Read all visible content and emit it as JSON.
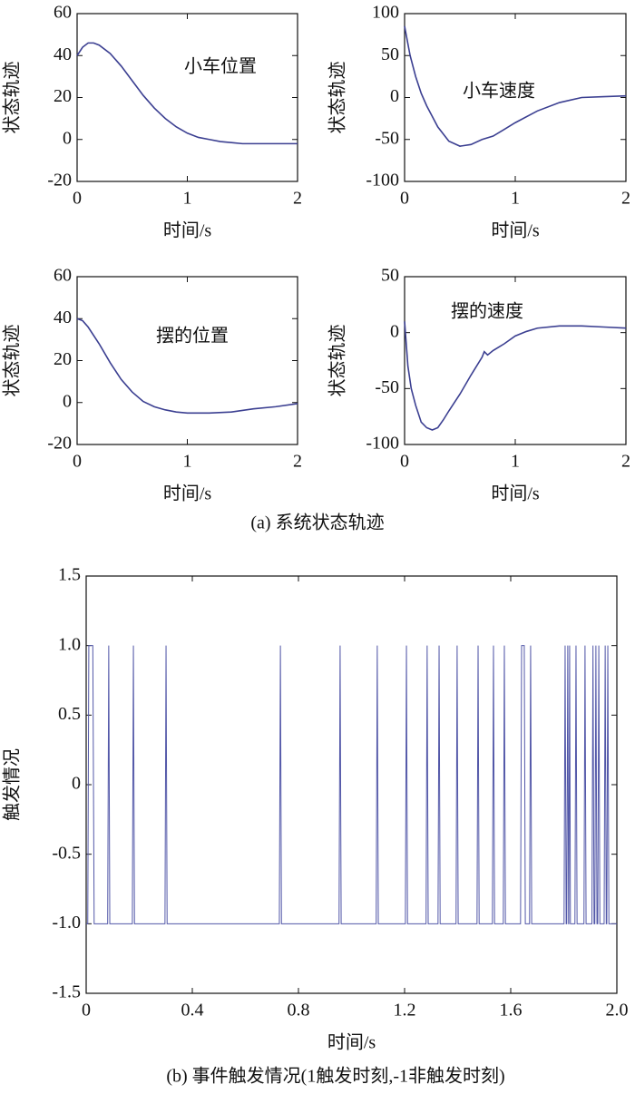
{
  "chart_data": [
    {
      "type": "line",
      "annotation": "小车位置",
      "xlabel": "时间/s",
      "ylabel": "状态轨迹",
      "color": "#3b3f91",
      "x": [
        0,
        0.05,
        0.1,
        0.15,
        0.2,
        0.3,
        0.4,
        0.5,
        0.6,
        0.7,
        0.8,
        0.9,
        1.0,
        1.1,
        1.2,
        1.3,
        1.4,
        1.5,
        1.6,
        1.8,
        2
      ],
      "values": [
        40,
        44,
        46,
        46,
        45,
        41,
        35,
        28,
        21,
        15,
        10,
        6,
        3,
        1,
        0,
        -1,
        -1.5,
        -2,
        -2,
        -2,
        -2
      ],
      "xlim": [
        0,
        2
      ],
      "xticks": [
        0,
        1,
        2
      ],
      "ylim": [
        -20,
        60
      ],
      "yticks": [
        -20,
        0,
        20,
        40,
        60
      ]
    },
    {
      "type": "line",
      "annotation": "小车速度",
      "xlabel": "时间/s",
      "ylabel": "状态轨迹",
      "color": "#3b3f91",
      "x": [
        0,
        0.05,
        0.1,
        0.15,
        0.2,
        0.3,
        0.4,
        0.5,
        0.6,
        0.7,
        0.8,
        0.9,
        1.0,
        1.2,
        1.4,
        1.6,
        1.8,
        2
      ],
      "values": [
        85,
        50,
        25,
        5,
        -10,
        -35,
        -52,
        -58,
        -56,
        -50,
        -46,
        -38,
        -30,
        -16,
        -6,
        0,
        1,
        2
      ],
      "xlim": [
        0,
        2
      ],
      "xticks": [
        0,
        1,
        2
      ],
      "ylim": [
        -100,
        100
      ],
      "yticks": [
        -100,
        -50,
        0,
        50,
        100
      ]
    },
    {
      "type": "line",
      "annotation": "摆的位置",
      "xlabel": "时间/s",
      "ylabel": "状态轨迹",
      "color": "#3b3f91",
      "x": [
        0,
        0.05,
        0.1,
        0.2,
        0.3,
        0.4,
        0.5,
        0.6,
        0.7,
        0.8,
        0.9,
        1.0,
        1.1,
        1.2,
        1.4,
        1.6,
        1.8,
        2
      ],
      "values": [
        40,
        39,
        36,
        28,
        19,
        11,
        5,
        0.5,
        -2,
        -3.5,
        -4.5,
        -5,
        -5,
        -5,
        -4.5,
        -3,
        -2,
        -0.5
      ],
      "xlim": [
        0,
        2
      ],
      "xticks": [
        0,
        1,
        2
      ],
      "ylim": [
        -20,
        60
      ],
      "yticks": [
        -20,
        0,
        20,
        40,
        60
      ]
    },
    {
      "type": "line",
      "annotation": "摆的速度",
      "xlabel": "时间/s",
      "ylabel": "状态轨迹",
      "color": "#3b3f91",
      "x": [
        0,
        0.03,
        0.06,
        0.1,
        0.15,
        0.2,
        0.25,
        0.3,
        0.35,
        0.4,
        0.5,
        0.6,
        0.7,
        0.72,
        0.75,
        0.8,
        0.9,
        1.0,
        1.1,
        1.2,
        1.4,
        1.6,
        1.8,
        2
      ],
      "values": [
        10,
        -30,
        -50,
        -65,
        -80,
        -85,
        -87,
        -85,
        -78,
        -70,
        -55,
        -38,
        -22,
        -17,
        -20,
        -16,
        -10,
        -3,
        1,
        4,
        6,
        6,
        5,
        4
      ],
      "xlim": [
        0,
        2
      ],
      "xticks": [
        0,
        1,
        2
      ],
      "ylim": [
        -100,
        50
      ],
      "yticks": [
        -100,
        -50,
        0,
        50
      ]
    },
    {
      "type": "line",
      "xlabel": "时间/s",
      "ylabel": "触发情况",
      "color": "#5257a8",
      "x": [
        0,
        0.006,
        0.01,
        0.025,
        0.03,
        0.081,
        0.085,
        0.089,
        0.174,
        0.178,
        0.182,
        0.297,
        0.301,
        0.305,
        0.728,
        0.732,
        0.736,
        0.953,
        0.957,
        0.961,
        1.093,
        1.097,
        1.101,
        1.203,
        1.207,
        1.211,
        1.281,
        1.285,
        1.289,
        1.326,
        1.33,
        1.334,
        1.394,
        1.398,
        1.402,
        1.473,
        1.477,
        1.481,
        1.531,
        1.535,
        1.539,
        1.572,
        1.576,
        1.58,
        1.637,
        1.641,
        1.651,
        1.655,
        1.671,
        1.675,
        1.679,
        1.801,
        1.805,
        1.809,
        1.811,
        1.815,
        1.818,
        1.819,
        1.822,
        1.825,
        1.842,
        1.846,
        1.85,
        1.876,
        1.88,
        1.884,
        1.906,
        1.91,
        1.914,
        1.917,
        1.921,
        1.925,
        1.928,
        1.932,
        1.936,
        1.952,
        1.956,
        1.96,
        1.962,
        1.966,
        1.97,
        2
      ],
      "values": [
        -1,
        -1,
        1,
        1,
        -1,
        -1,
        1,
        -1,
        -1,
        1,
        -1,
        -1,
        1,
        -1,
        -1,
        1,
        -1,
        -1,
        1,
        -1,
        -1,
        1,
        -1,
        -1,
        1,
        -1,
        -1,
        1,
        -1,
        -1,
        1,
        -1,
        -1,
        1,
        -1,
        -1,
        1,
        -1,
        -1,
        1,
        -1,
        -1,
        1,
        -1,
        -1,
        1,
        1,
        -1,
        -1,
        1,
        -1,
        -1,
        1,
        -1,
        -1,
        1,
        -1,
        -1,
        1,
        -1,
        -1,
        1,
        -1,
        -1,
        1,
        -1,
        -1,
        1,
        -1,
        -1,
        1,
        -1,
        -1,
        1,
        -1,
        -1,
        1,
        -1,
        -1,
        1,
        -1,
        -1
      ],
      "xlim": [
        0,
        2
      ],
      "xticks": [
        0,
        0.4,
        0.8,
        1.2,
        1.6,
        {
          "value": 2,
          "label": "2.0"
        }
      ],
      "ylim": [
        -1.5,
        1.5
      ],
      "yticks": [
        -1.5,
        {
          "value": -1,
          "label": "-1.0"
        },
        -0.5,
        0,
        0.5,
        {
          "value": 1,
          "label": "1.0"
        },
        1.5
      ]
    }
  ],
  "captions": [
    "(a) 系统状态轨迹",
    "(b) 事件触发情况(1触发时刻,-1非触发时刻)"
  ]
}
